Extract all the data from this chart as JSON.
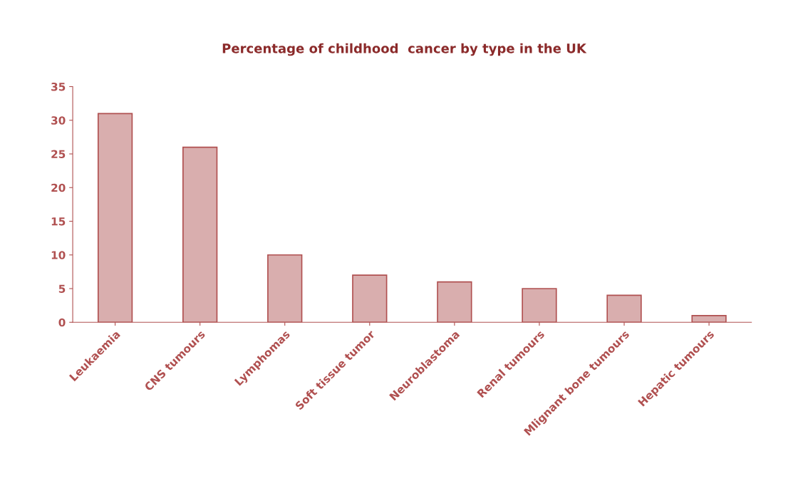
{
  "chart_data": {
    "type": "bar",
    "title": "Percentage of childhood  cancer by type in the UK",
    "categories": [
      "Leukaemia",
      "CNS tumours",
      "Lymphomas",
      "Soft tissue tumor",
      "Neuroblastoma",
      "Renal tumours",
      "Mlignant bone tumours",
      "Hepatic tumours"
    ],
    "values": [
      31,
      26,
      10,
      7,
      6,
      5,
      4,
      1
    ],
    "color": "#d9aeae",
    "ylim": [
      0,
      35
    ],
    "yticks": [
      0,
      5,
      10,
      15,
      20,
      25,
      30,
      35
    ],
    "grid": false
  }
}
